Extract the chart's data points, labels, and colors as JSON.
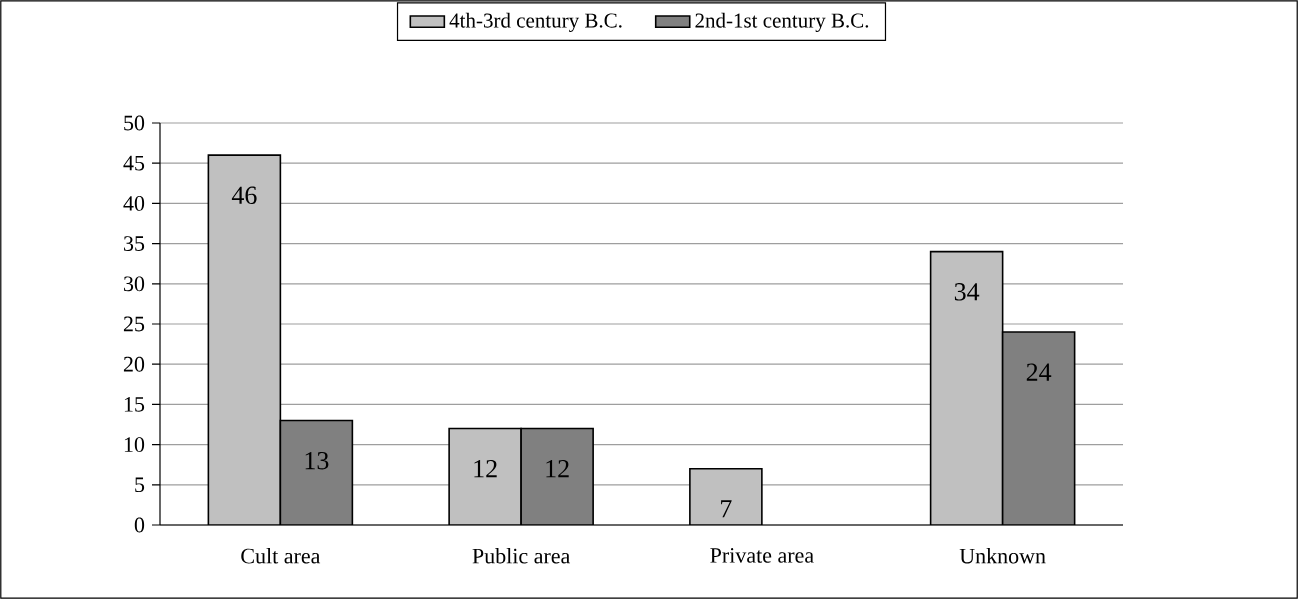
{
  "chart_data": {
    "type": "bar",
    "categories": [
      "Cult area",
      "Public area",
      "Private area",
      "Unknown"
    ],
    "series": [
      {
        "name": "4th-3rd century B.C.",
        "color": "#c0c0c0",
        "values": [
          46,
          12,
          7,
          34
        ]
      },
      {
        "name": "2nd-1st century B.C.",
        "color": "#808080",
        "values": [
          13,
          12,
          null,
          24
        ]
      }
    ],
    "ylim": [
      0,
      50
    ],
    "yticks": [
      0,
      5,
      10,
      15,
      20,
      25,
      30,
      35,
      40,
      45,
      50
    ],
    "grid": "y",
    "legend": "top",
    "data_labels": true
  }
}
